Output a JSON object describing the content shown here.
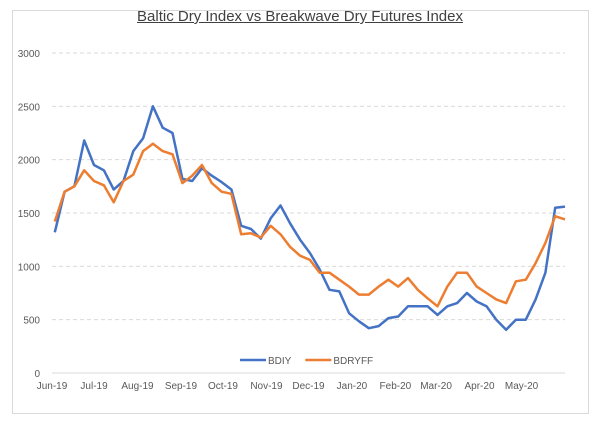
{
  "chart_data": {
    "type": "line",
    "title": "Baltic Dry Index vs Breakwave Dry Futures Index",
    "xlabel": "",
    "ylabel": "",
    "ylim": [
      0,
      3000
    ],
    "yticks": [
      0,
      500,
      1000,
      1500,
      2000,
      2500,
      3000
    ],
    "xlim": [
      "2019-06-01",
      "2020-06-01"
    ],
    "xtick_labels": [
      "Jun-19",
      "Jul-19",
      "Aug-19",
      "Sep-19",
      "Oct-19",
      "Nov-19",
      "Dec-19",
      "Jan-20",
      "Feb-20",
      "Mar-20",
      "Apr-20",
      "May-20"
    ],
    "xtick_dates": [
      "2019-06-01",
      "2019-07-01",
      "2019-08-01",
      "2019-09-01",
      "2019-10-01",
      "2019-11-01",
      "2019-12-01",
      "2020-01-01",
      "2020-02-01",
      "2020-03-01",
      "2020-04-01",
      "2020-05-01"
    ],
    "grid": "horizontal dashed",
    "legend": "bottom-center",
    "x_start": "2019-06-03",
    "x_step_days": 7,
    "series": [
      {
        "name": "BDIY",
        "color": "#4472c4",
        "values": [
          1319,
          1700,
          1750,
          2180,
          1950,
          1900,
          1720,
          1800,
          2080,
          2200,
          2500,
          2300,
          2250,
          1820,
          1800,
          1920,
          1850,
          1790,
          1720,
          1380,
          1350,
          1260,
          1450,
          1570,
          1400,
          1250,
          1125,
          970,
          780,
          765,
          560,
          485,
          420,
          440,
          515,
          530,
          625,
          625,
          625,
          545,
          625,
          655,
          750,
          670,
          625,
          500,
          405,
          500,
          500,
          690,
          940,
          1550,
          1560
        ]
      },
      {
        "name": "BDRYFF",
        "color": "#ed7d31",
        "values": [
          1420,
          1700,
          1750,
          1900,
          1800,
          1760,
          1600,
          1800,
          1860,
          2080,
          2150,
          2080,
          2050,
          1780,
          1850,
          1950,
          1780,
          1700,
          1680,
          1300,
          1310,
          1270,
          1380,
          1300,
          1180,
          1100,
          1060,
          940,
          940,
          875,
          810,
          735,
          735,
          810,
          875,
          810,
          890,
          780,
          700,
          625,
          810,
          940,
          940,
          810,
          750,
          690,
          655,
          860,
          875,
          1030,
          1220,
          1470,
          1440
        ]
      }
    ]
  }
}
